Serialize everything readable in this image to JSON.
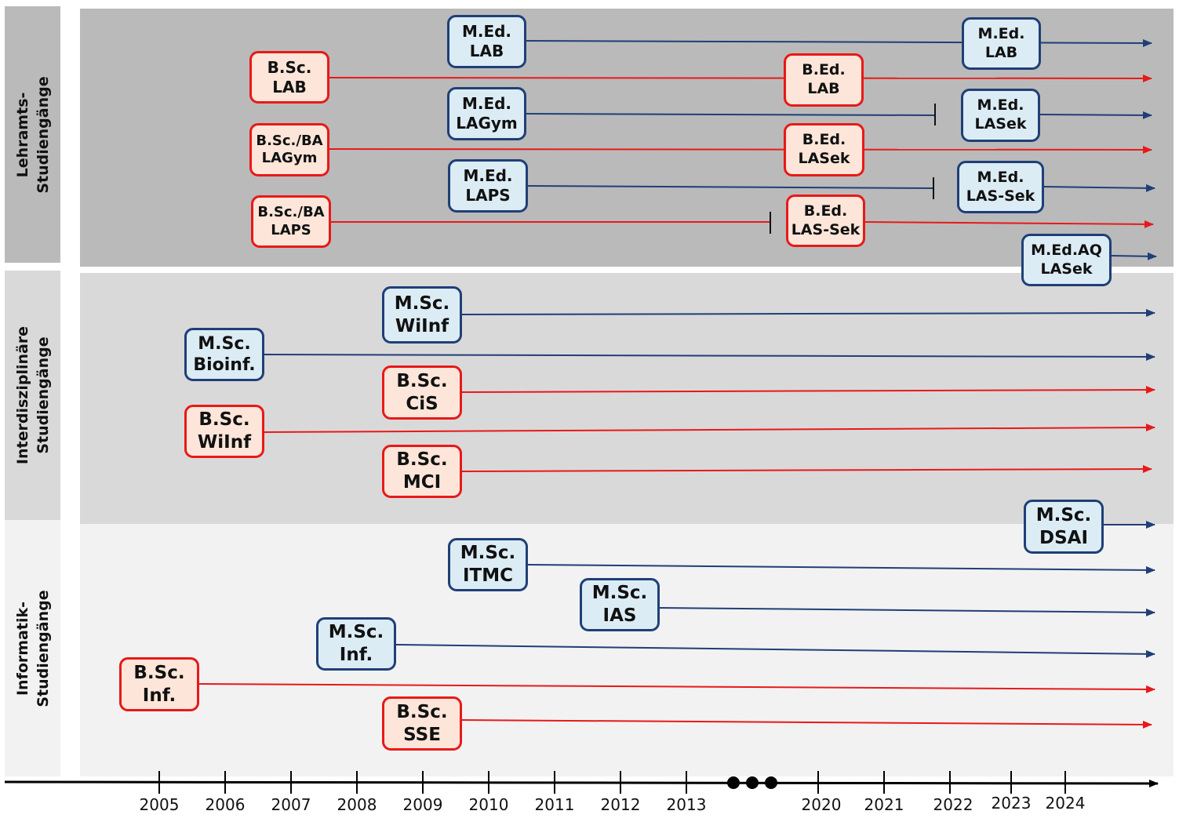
{
  "colors": {
    "panel_lehramt": "#bababa",
    "panel_interdisciplinary": "#d9d9d9",
    "panel_informatik": "#f2f2f2",
    "master_fill": "#dcecf5",
    "master_border": "#1f3f77",
    "bachelor_fill": "#fde6d9",
    "bachelor_border": "#e81919",
    "axis": "#000000"
  },
  "sections": {
    "lehramt": {
      "line1": "Lehramts-",
      "line2": "Studiengänge"
    },
    "interdisciplinary": {
      "line1": "Interdisziplinäre",
      "line2": "Studiengänge"
    },
    "informatik": {
      "line1": "Informatik-",
      "line2": "Studiengänge"
    }
  },
  "boxes": [
    {
      "id": "med-lab-2010",
      "type": "master",
      "line1": "M.Ed.",
      "line2": "LAB"
    },
    {
      "id": "med-lab-2022",
      "type": "master",
      "line1": "M.Ed.",
      "line2": "LAB"
    },
    {
      "id": "bsc-lab",
      "type": "bachelor",
      "line1": "B.Sc.",
      "line2": "LAB"
    },
    {
      "id": "bed-lab",
      "type": "bachelor",
      "line1": "B.Ed.",
      "line2": "LAB"
    },
    {
      "id": "med-lagym",
      "type": "master",
      "line1": "M.Ed.",
      "line2": "LAGym"
    },
    {
      "id": "med-lasek",
      "type": "master",
      "line1": "M.Ed.",
      "line2": "LASek"
    },
    {
      "id": "bsc-ba-lagym",
      "type": "bachelor",
      "line1": "B.Sc./BA",
      "line2": "LAGym"
    },
    {
      "id": "bed-lasek",
      "type": "bachelor",
      "line1": "B.Ed.",
      "line2": "LASek"
    },
    {
      "id": "med-laps",
      "type": "master",
      "line1": "M.Ed.",
      "line2": "LAPS"
    },
    {
      "id": "med-las-sek",
      "type": "master",
      "line1": "M.Ed.",
      "line2": "LAS-Sek"
    },
    {
      "id": "bsc-ba-laps",
      "type": "bachelor",
      "line1": "B.Sc./BA",
      "line2": "LAPS"
    },
    {
      "id": "bed-las-sek",
      "type": "bachelor",
      "line1": "B.Ed.",
      "line2": "LAS-Sek"
    },
    {
      "id": "med-aq-lasek",
      "type": "master",
      "line1": "M.Ed.AQ",
      "line2": "LASek"
    },
    {
      "id": "msc-wiinf",
      "type": "master",
      "line1": "M.Sc.",
      "line2": "WiInf"
    },
    {
      "id": "msc-bioinf",
      "type": "master",
      "line1": "M.Sc.",
      "line2": "Bioinf."
    },
    {
      "id": "bsc-cis",
      "type": "bachelor",
      "line1": "B.Sc.",
      "line2": "CiS"
    },
    {
      "id": "bsc-wiinf",
      "type": "bachelor",
      "line1": "B.Sc.",
      "line2": "WiInf"
    },
    {
      "id": "bsc-mci",
      "type": "bachelor",
      "line1": "B.Sc.",
      "line2": "MCI"
    },
    {
      "id": "msc-dsai",
      "type": "master",
      "line1": "M.Sc.",
      "line2": "DSAI"
    },
    {
      "id": "msc-itmc",
      "type": "master",
      "line1": "M.Sc.",
      "line2": "ITMC"
    },
    {
      "id": "msc-ias",
      "type": "master",
      "line1": "M.Sc.",
      "line2": "IAS"
    },
    {
      "id": "msc-inf",
      "type": "master",
      "line1": "M.Sc.",
      "line2": "Inf."
    },
    {
      "id": "bsc-inf",
      "type": "bachelor",
      "line1": "B.Sc.",
      "line2": "Inf."
    },
    {
      "id": "bsc-sse",
      "type": "bachelor",
      "line1": "B.Sc.",
      "line2": "SSE"
    }
  ],
  "years": [
    "2005",
    "2006",
    "2007",
    "2008",
    "2009",
    "2010",
    "2011",
    "2012",
    "2013",
    "2020",
    "2021",
    "2022",
    "2023",
    "2024"
  ]
}
